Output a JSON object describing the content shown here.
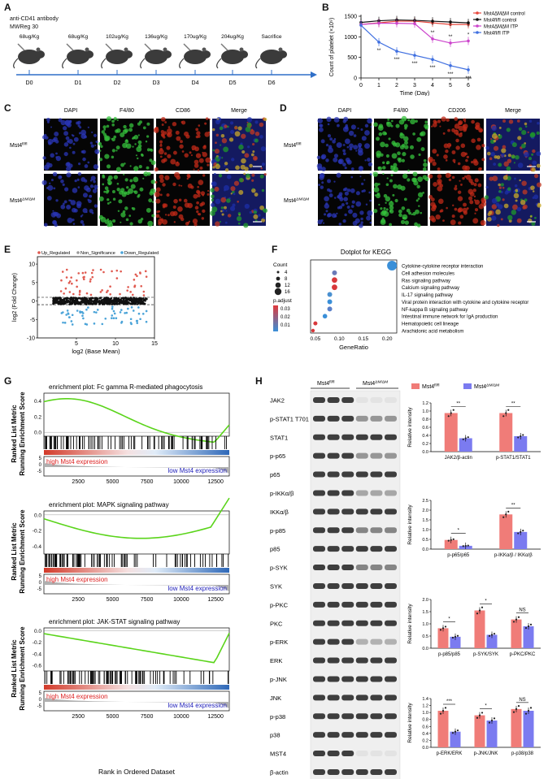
{
  "panels": {
    "A": "A",
    "B": "B",
    "C": "C",
    "D": "D",
    "E": "E",
    "F": "F",
    "G": "G",
    "H": "H"
  },
  "panelA": {
    "line1": "anti-CD41 antibody",
    "line2": "MWReg 30",
    "doses": [
      "68ug/Kg",
      "68ug/Kg",
      "102ug/Kg",
      "136ug/Kg",
      "170ug/Kg",
      "204ug/Kg",
      "Sacrifice"
    ],
    "days": [
      "D0",
      "D1",
      "D2",
      "D3",
      "D4",
      "D5",
      "D6"
    ]
  },
  "panelB": {
    "ylabel": "Count of platelet (×10⁹)",
    "xlabel": "Time (Day)",
    "legend": [
      "Mst4ΔMΔM control",
      "Mst4fl/fl control",
      "Mst4ΔMΔM ITP",
      "Mst4fl/fl ITP"
    ],
    "legend_colors": [
      "#e8473c",
      "#111111",
      "#cc44cc",
      "#3f6fe0"
    ],
    "sig_upper": [
      "**",
      "**",
      "*"
    ],
    "sig_lower": [
      "**",
      "***",
      "***",
      "***",
      "***",
      "***"
    ]
  },
  "chart_data": {
    "type": "line",
    "title": "",
    "xlabel": "Time (Day)",
    "ylabel": "Count of platelet (×10⁹)",
    "x": [
      0,
      1,
      2,
      3,
      4,
      5,
      6
    ],
    "xlim": [
      0,
      6
    ],
    "ylim": [
      0,
      1500
    ],
    "yticks": [
      0,
      500,
      1000,
      1500
    ],
    "series": [
      {
        "name": "Mst4ΔMΔM control",
        "color": "#e8473c",
        "values": [
          1300,
          1340,
          1380,
          1380,
          1340,
          1300,
          1300
        ]
      },
      {
        "name": "Mst4fl/fl control",
        "color": "#111111",
        "values": [
          1350,
          1390,
          1410,
          1400,
          1380,
          1360,
          1340
        ]
      },
      {
        "name": "Mst4ΔMΔM ITP",
        "color": "#cc44cc",
        "values": [
          1300,
          1330,
          1330,
          1320,
          950,
          850,
          900
        ]
      },
      {
        "name": "Mst4fl/fl ITP",
        "color": "#3f6fe0",
        "values": [
          1280,
          870,
          650,
          550,
          450,
          300,
          200
        ]
      }
    ]
  },
  "panelC": {
    "cols": [
      "DAPI",
      "F4/80",
      "CD86",
      "Merge"
    ],
    "rows": [
      "Mst4fl/fl",
      "Mst4ΔM/ΔM"
    ]
  },
  "panelD": {
    "cols": [
      "DAPI",
      "F4/80",
      "CD206",
      "Merge"
    ],
    "rows": [
      "Mst4fl/fl",
      "Mst4ΔM/ΔM"
    ]
  },
  "panelE": {
    "legend": [
      "Up_Regulated",
      "Non_Significance",
      "Down_Regulated"
    ],
    "ylabel": "log2 (Fold Change)",
    "xlabel": "log2 (Base Mean)",
    "yticks": [
      "10",
      "5",
      "0",
      "-5",
      "-10"
    ],
    "xticks": [
      "5",
      "10",
      "15"
    ]
  },
  "panelF": {
    "title": "Dotplot for KEGG",
    "count_title": "Count",
    "counts": [
      "4",
      "8",
      "12",
      "16"
    ],
    "padj_title": "p.adjust",
    "padj": [
      "0.03",
      "0.02",
      "0.01"
    ],
    "xlabel": "GeneRatio",
    "xticks": [
      "0.05",
      "0.10",
      "0.15",
      "0.20"
    ],
    "terms": [
      "Cytokine-cytokine receptor interaction",
      "Cell adhesion molecules",
      "Ras signaling pathway",
      "Calcium signaling pathway",
      "IL-17 signaling pathway",
      "Viral protein interaction with cytokine and cytokine receptor",
      "NF-kappa B signaling pathway",
      "Intestinal immune network for IgA production",
      "Hematopoietic cell lineage",
      "Arachidonic acid metabolism"
    ],
    "ratios": [
      0.21,
      0.09,
      0.09,
      0.09,
      0.08,
      0.08,
      0.08,
      0.07,
      0.05,
      0.045
    ]
  },
  "panelG": {
    "titles": [
      "enrichment plot: Fc gamma R-mediated phagocytosis",
      "enrichment plot: MAPK signaling pathway",
      "enrichment plot: JAK-STAT signaling pathway"
    ],
    "ylabel1": "Running Enrichment Score",
    "ylabel2": "Ranked List Metric",
    "high": "high Mst4 expression",
    "low": "low Mst4 expression",
    "xlabel": "Rank in Ordered Dataset",
    "xticks": [
      "2500",
      "5000",
      "7500",
      "10000",
      "12500"
    ],
    "yticks": [
      [
        "0.4",
        "0.2",
        "0.0"
      ],
      [
        "0.0",
        "-0.2",
        "-0.4"
      ],
      [
        "0.0",
        "-0.2",
        "-0.4",
        "-0.6"
      ]
    ],
    "metric_ticks": [
      "5",
      "0",
      "-5"
    ]
  },
  "panelH": {
    "group1": "Mst4fl/fl",
    "group2": "Mst4ΔM/ΔM",
    "blots": [
      "JAK2",
      "p-STAT1 T701",
      "STAT1",
      "p-p65",
      "p65",
      "p-IKKα/β",
      "IKKα/β",
      "p-p85",
      "p85",
      "p-SYK",
      "SYK",
      "p-PKC",
      "PKC",
      "p-ERK",
      "ERK",
      "p-JNK",
      "JNK",
      "p-p38",
      "p38",
      "MST4",
      "β-actin"
    ],
    "legend": [
      "Mst4fl/fl",
      "Mst4ΔM/ΔM"
    ],
    "bar_colors": [
      "#f07c78",
      "#7b7bf0"
    ],
    "ylabel": "Relative intensity",
    "bars": [
      {
        "cats": [
          "JAK2/β-actin",
          "p-STAT1/STAT1"
        ],
        "wt": [
          0.95,
          0.95
        ],
        "ko": [
          0.33,
          0.38
        ],
        "yticks": [
          "0.0",
          "0.2",
          "0.4",
          "0.6",
          "0.8",
          "1.0",
          "1.2"
        ],
        "sig": [
          "**",
          "**"
        ]
      },
      {
        "cats": [
          "p-p65/p65",
          "p-IKKα/β / IKKα/β"
        ],
        "wt": [
          0.47,
          1.78
        ],
        "ko": [
          0.17,
          0.88
        ],
        "yticks": [
          "0.0",
          "0.5",
          "1.0",
          "1.5",
          "2.0",
          "2.5"
        ],
        "sig": [
          "*",
          "**"
        ]
      },
      {
        "cats": [
          "p-p85/p85",
          "p-SYK/SYK",
          "p-PKC/PKC"
        ],
        "wt": [
          0.82,
          1.55,
          1.18
        ],
        "ko": [
          0.47,
          0.55,
          0.9
        ],
        "yticks": [
          "0.0",
          "0.5",
          "1.0",
          "1.5",
          "2.0"
        ],
        "sig": [
          "*",
          "*",
          "NS"
        ]
      },
      {
        "cats": [
          "p-ERK/ERK",
          "p-JNK/JNK",
          "p-p38/p38"
        ],
        "wt": [
          1.05,
          0.92,
          1.1
        ],
        "ko": [
          0.45,
          0.77,
          1.05
        ],
        "yticks": [
          "0.0",
          "0.2",
          "0.4",
          "0.6",
          "0.8",
          "1.0",
          "1.2",
          "1.4"
        ],
        "sig": [
          "***",
          "*",
          "NS"
        ]
      }
    ]
  }
}
